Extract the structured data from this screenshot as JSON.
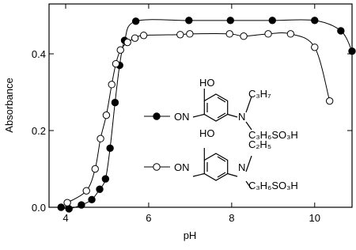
{
  "chart_data": {
    "type": "line",
    "x_label": "pH",
    "y_label": "Absorbance",
    "xlim": [
      3.6,
      10.9
    ],
    "ylim": [
      0,
      0.53
    ],
    "xticks": [
      4,
      6,
      8,
      10
    ],
    "yticks": [
      {
        "value": 0,
        "label": "0.0"
      },
      {
        "value": 0.2,
        "label": "0.2"
      },
      {
        "value": 0.4,
        "label": "0.4"
      }
    ],
    "series": [
      {
        "marker": "filled",
        "color": "#000000",
        "structure": {
          "hydroxy": "HO",
          "nitroso": "ON",
          "amine": "N",
          "r1": "C₃H₇",
          "r2": "C₃H₆SO₃H"
        },
        "x": [
          3.89,
          4.08,
          4.38,
          4.63,
          4.82,
          4.96,
          5.07,
          5.19,
          5.3,
          5.42,
          5.69,
          6.97,
          7.97,
          8.98,
          10.0,
          10.63,
          10.9
        ],
        "values": [
          0.0,
          -0.004,
          0.006,
          0.02,
          0.047,
          0.074,
          0.154,
          0.273,
          0.37,
          0.435,
          0.485,
          0.487,
          0.487,
          0.487,
          0.487,
          0.46,
          0.407
        ]
      },
      {
        "marker": "open",
        "color": "#000000",
        "structure": {
          "hydroxy": "HO",
          "nitroso": "ON",
          "amine": "N",
          "r1": "C₂H₅",
          "r2": "C₃H₆SO₃H"
        },
        "x": [
          4.04,
          4.5,
          4.71,
          4.84,
          4.98,
          5.11,
          5.21,
          5.32,
          5.49,
          5.67,
          5.88,
          6.76,
          6.99,
          7.95,
          8.29,
          8.88,
          9.42,
          10.0,
          10.36
        ],
        "values": [
          0.012,
          0.043,
          0.1,
          0.179,
          0.24,
          0.32,
          0.374,
          0.41,
          0.43,
          0.441,
          0.448,
          0.45,
          0.452,
          0.452,
          0.446,
          0.452,
          0.452,
          0.417,
          0.277
        ]
      }
    ]
  }
}
